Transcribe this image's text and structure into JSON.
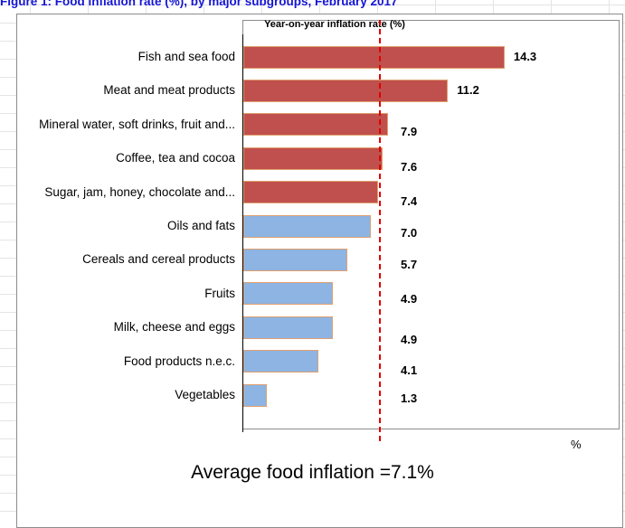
{
  "figure": {
    "title": "Figure 1: Food inflation rate (%), by major subgroups, February 2017"
  },
  "chart_data": {
    "type": "bar",
    "orientation": "horizontal",
    "title": "Year-on-year inflation rate (%)",
    "xlabel": "%",
    "ylabel": "",
    "xlim": [
      0,
      15
    ],
    "grid": false,
    "categories": [
      "Fish and sea food",
      "Meat and meat products",
      "Mineral water, soft drinks, fruit and...",
      "Coffee, tea and cocoa",
      "Sugar, jam, honey, chocolate and...",
      "Oils and fats",
      "Cereals and cereal products",
      "Fruits",
      "Milk, cheese and eggs",
      "Food products n.e.c.",
      "Vegetables"
    ],
    "values": [
      14.3,
      11.2,
      7.9,
      7.6,
      7.4,
      7.0,
      5.7,
      4.9,
      4.9,
      4.1,
      1.3
    ],
    "value_labels": [
      "14.3",
      "11.2",
      "7.9",
      "7.6",
      "7.4",
      "7.0",
      "5.7",
      "4.9",
      "4.9",
      "4.1",
      "1.3"
    ],
    "reference_line": {
      "value": 7.1,
      "style": "dashed",
      "color": "#e00000"
    },
    "annotation": "Average food inflation =7.1%",
    "colors": {
      "above_average": "#c0504d",
      "below_average": "#8db4e2",
      "bar_border": "#e0a070"
    }
  }
}
